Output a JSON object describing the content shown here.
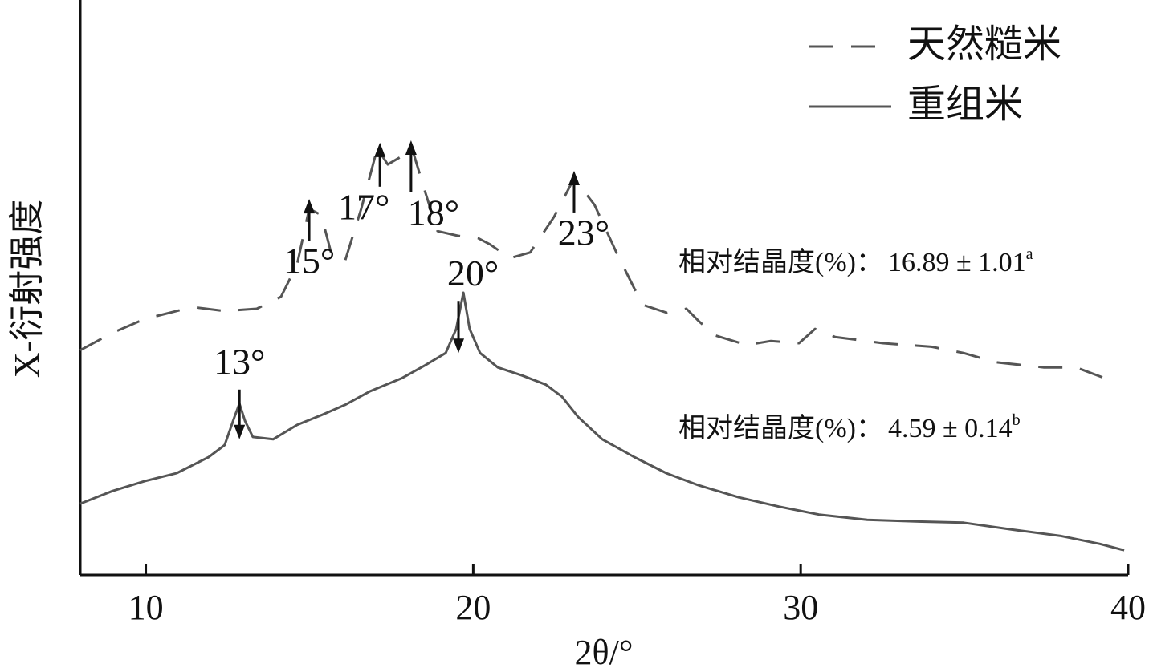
{
  "chart_data": {
    "type": "line",
    "xlabel": "2θ/°",
    "ylabel": "X-衍射强度",
    "xlim": [
      8,
      40
    ],
    "xticks": [
      10,
      20,
      30,
      40
    ],
    "ylim": [
      0,
      100
    ],
    "legend": "upper right",
    "series": [
      {
        "name": "天然糙米",
        "color": "#555555",
        "dash": true,
        "x": [
          8.0,
          8.98,
          9.96,
          11.43,
          12.41,
          13.39,
          14.13,
          14.62,
          14.99,
          15.36,
          15.68,
          16.09,
          16.58,
          17.07,
          17.39,
          17.81,
          18.13,
          18.54,
          18.91,
          19.53,
          20.14,
          20.51,
          21.12,
          21.74,
          22.47,
          23.08,
          23.7,
          24.43,
          25.17,
          25.91,
          26.51,
          26.88,
          27.37,
          28.35,
          29.09,
          29.95,
          30.44,
          31.05,
          32.52,
          33.99,
          34.97,
          35.95,
          37.43,
          38.41,
          39.39
        ],
        "values": [
          39.1,
          42.1,
          44.5,
          46.6,
          45.9,
          46.3,
          48.4,
          54.0,
          63.7,
          62.6,
          55.6,
          54.7,
          63.7,
          74.2,
          71.4,
          72.8,
          74.2,
          66.5,
          59.8,
          59.0,
          58.6,
          57.5,
          55.1,
          56.1,
          62.3,
          69.0,
          64.4,
          55.4,
          47.0,
          45.6,
          46.3,
          44.2,
          41.7,
          40.0,
          40.7,
          40.3,
          42.8,
          41.4,
          40.3,
          39.7,
          38.6,
          37.0,
          36.1,
          36.1,
          34.0
        ]
      },
      {
        "name": "重组米",
        "color": "#555555",
        "dash": false,
        "x": [
          8.0,
          8.98,
          9.96,
          10.94,
          11.92,
          12.41,
          12.71,
          12.86,
          13.03,
          13.27,
          13.89,
          14.62,
          15.36,
          16.09,
          16.83,
          17.81,
          18.54,
          19.16,
          19.48,
          19.7,
          19.89,
          20.21,
          20.75,
          21.49,
          22.22,
          22.71,
          23.2,
          23.94,
          24.92,
          25.9,
          26.88,
          28.11,
          29.33,
          30.56,
          32.03,
          33.5,
          34.97,
          36.45,
          37.92,
          39.14,
          39.88
        ],
        "values": [
          12.4,
          14.6,
          16.3,
          17.7,
          20.5,
          22.6,
          27.5,
          29.8,
          26.8,
          24.0,
          23.6,
          26.1,
          27.8,
          29.6,
          31.9,
          34.2,
          36.5,
          38.6,
          42.8,
          49.1,
          42.8,
          38.6,
          36.1,
          34.7,
          33.1,
          31.0,
          27.5,
          23.6,
          20.5,
          17.7,
          15.6,
          13.5,
          11.9,
          10.5,
          9.6,
          9.3,
          9.1,
          7.9,
          6.8,
          5.4,
          4.3
        ]
      }
    ],
    "annotations": [
      {
        "text": "15°",
        "x": 14.99,
        "y": 65.4,
        "arrow": "down"
      },
      {
        "text": "17°",
        "x": 17.15,
        "y": 75.2,
        "arrow": "down"
      },
      {
        "text": "18°",
        "x": 18.1,
        "y": 75.6,
        "arrow": "down"
      },
      {
        "text": "23°",
        "x": 23.08,
        "y": 70.3,
        "arrow": "down"
      },
      {
        "text": "13°",
        "x": 12.86,
        "y": 23.6,
        "arrow": "up"
      },
      {
        "text": "20°",
        "x": 19.55,
        "y": 38.6,
        "arrow": "up"
      }
    ],
    "crystallinity": [
      {
        "label": "相对结晶度(%)：",
        "value": "16.89 ± 1.01",
        "superscript": "a"
      },
      {
        "label": "相对结晶度(%)：",
        "value": "4.59 ± 0.14",
        "superscript": "b"
      }
    ]
  }
}
